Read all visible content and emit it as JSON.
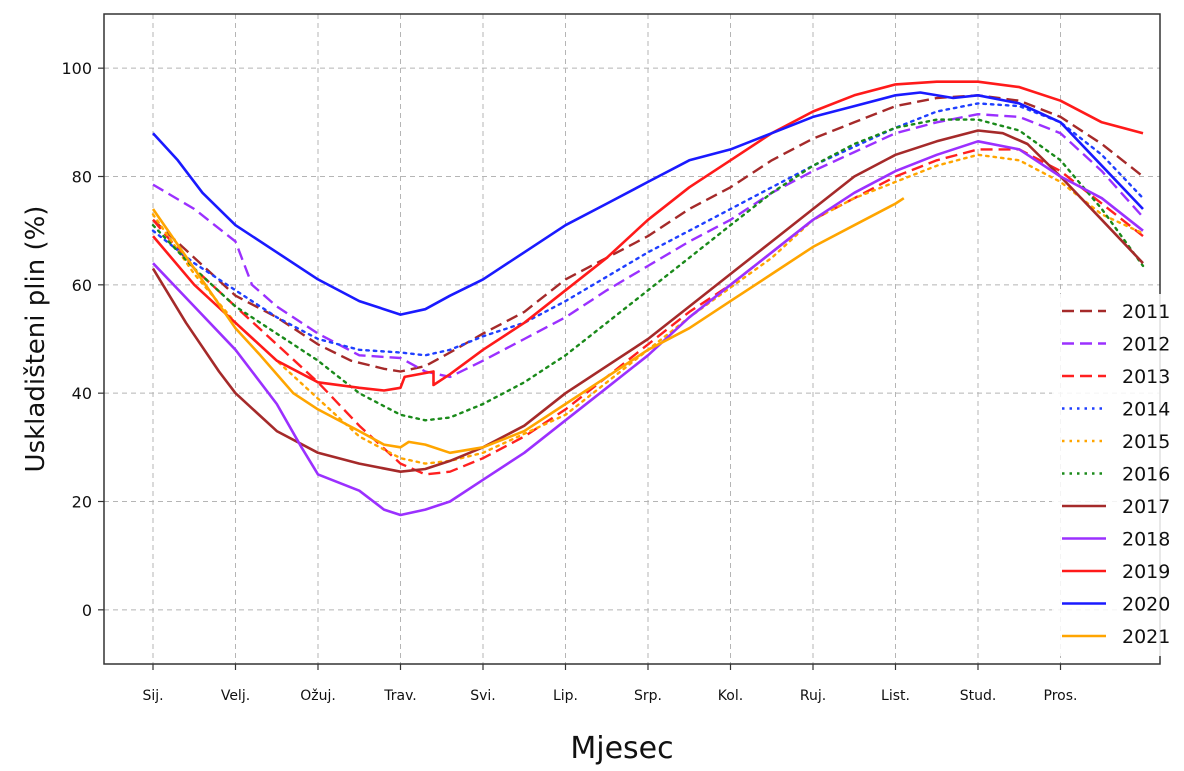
{
  "chart_data": {
    "type": "line",
    "xlabel": "Mjesec",
    "ylabel": "Uskladišteni plin (%)",
    "ylim": [
      -10,
      110
    ],
    "yticks": [
      0,
      20,
      40,
      60,
      80,
      100
    ],
    "months": [
      "Sij.",
      "Velj.",
      "Ožuj.",
      "Trav.",
      "Svi.",
      "Lip.",
      "Srp.",
      "Kol.",
      "Ruj.",
      "List.",
      "Stud.",
      "Pros."
    ],
    "x_unit": "month (1 = start of Sij.)",
    "grid": true,
    "legend_position": "right",
    "series": [
      {
        "name": "2011",
        "color": "#a52a2a",
        "dash": "dashed",
        "points": [
          [
            1,
            72
          ],
          [
            2,
            58
          ],
          [
            2.5,
            54
          ],
          [
            3,
            49
          ],
          [
            3.4,
            46
          ],
          [
            3.8,
            44.5
          ],
          [
            4,
            44
          ],
          [
            4.3,
            45
          ],
          [
            4.6,
            47.5
          ],
          [
            5,
            51
          ],
          [
            5.5,
            55
          ],
          [
            6,
            61
          ],
          [
            6.5,
            65
          ],
          [
            7,
            69
          ],
          [
            7.5,
            74
          ],
          [
            8,
            78
          ],
          [
            8.5,
            83
          ],
          [
            9,
            87
          ],
          [
            9.5,
            90
          ],
          [
            10,
            93
          ],
          [
            10.5,
            94.5
          ],
          [
            11,
            95
          ],
          [
            11.5,
            94
          ],
          [
            12,
            91
          ],
          [
            12.5,
            86
          ],
          [
            13,
            80
          ]
        ]
      },
      {
        "name": "2012",
        "color": "#9b30ff",
        "dash": "dashed",
        "points": [
          [
            1,
            78.5
          ],
          [
            1.5,
            74
          ],
          [
            2,
            68
          ],
          [
            2.2,
            60
          ],
          [
            2.5,
            56
          ],
          [
            3,
            51
          ],
          [
            3.5,
            47
          ],
          [
            4,
            46.5
          ],
          [
            4.3,
            44
          ],
          [
            4.6,
            43
          ],
          [
            5,
            46
          ],
          [
            5.5,
            50
          ],
          [
            6,
            54
          ],
          [
            6.5,
            59
          ],
          [
            7,
            63.5
          ],
          [
            7.5,
            68
          ],
          [
            8,
            72
          ],
          [
            8.5,
            77
          ],
          [
            9,
            81
          ],
          [
            9.5,
            84.5
          ],
          [
            10,
            88
          ],
          [
            10.5,
            90
          ],
          [
            11,
            91.5
          ],
          [
            11.5,
            91
          ],
          [
            12,
            88
          ],
          [
            12.5,
            81
          ],
          [
            13,
            72.5
          ]
        ]
      },
      {
        "name": "2013",
        "color": "#ff2020",
        "dash": "dashed",
        "points": [
          [
            1,
            72
          ],
          [
            1.5,
            63
          ],
          [
            2,
            56
          ],
          [
            2.5,
            49
          ],
          [
            3,
            42
          ],
          [
            3.5,
            34
          ],
          [
            4,
            27
          ],
          [
            4.3,
            25
          ],
          [
            4.6,
            25.5
          ],
          [
            5,
            28
          ],
          [
            5.5,
            32
          ],
          [
            6,
            37
          ],
          [
            6.5,
            43
          ],
          [
            7,
            49
          ],
          [
            7.5,
            55
          ],
          [
            8,
            60
          ],
          [
            8.5,
            66
          ],
          [
            9,
            72
          ],
          [
            9.5,
            76
          ],
          [
            10,
            80
          ],
          [
            10.5,
            83
          ],
          [
            11,
            85
          ],
          [
            11.5,
            85
          ],
          [
            12,
            81
          ],
          [
            12.5,
            75
          ],
          [
            13,
            69
          ]
        ]
      },
      {
        "name": "2014",
        "color": "#1f3fff",
        "dash": "dotted",
        "points": [
          [
            1,
            70
          ],
          [
            1.5,
            64
          ],
          [
            2,
            59
          ],
          [
            2.5,
            54
          ],
          [
            3,
            50
          ],
          [
            3.5,
            48
          ],
          [
            4,
            47.5
          ],
          [
            4.3,
            47
          ],
          [
            4.6,
            48
          ],
          [
            5,
            50.5
          ],
          [
            5.5,
            53
          ],
          [
            6,
            57
          ],
          [
            6.5,
            61.5
          ],
          [
            7,
            66
          ],
          [
            7.5,
            70
          ],
          [
            8,
            74
          ],
          [
            8.5,
            78
          ],
          [
            9,
            82
          ],
          [
            9.5,
            85.5
          ],
          [
            10,
            89
          ],
          [
            10.5,
            92
          ],
          [
            11,
            93.5
          ],
          [
            11.5,
            93
          ],
          [
            12,
            90
          ],
          [
            12.5,
            84
          ],
          [
            13,
            76
          ]
        ]
      },
      {
        "name": "2015",
        "color": "#ffa500",
        "dash": "dotted",
        "points": [
          [
            1,
            73
          ],
          [
            1.5,
            62
          ],
          [
            2,
            53
          ],
          [
            2.5,
            46
          ],
          [
            3,
            39
          ],
          [
            3.5,
            32
          ],
          [
            4,
            28
          ],
          [
            4.3,
            27
          ],
          [
            4.6,
            27.5
          ],
          [
            5,
            29
          ],
          [
            5.5,
            32.5
          ],
          [
            6,
            36
          ],
          [
            6.5,
            42
          ],
          [
            7,
            48
          ],
          [
            7.5,
            54
          ],
          [
            8,
            59.5
          ],
          [
            8.5,
            65
          ],
          [
            9,
            72
          ],
          [
            9.5,
            76
          ],
          [
            10,
            79
          ],
          [
            10.5,
            82
          ],
          [
            11,
            84
          ],
          [
            11.5,
            83
          ],
          [
            12,
            79
          ],
          [
            12.5,
            73
          ],
          [
            13,
            69.5
          ]
        ]
      },
      {
        "name": "2016",
        "color": "#1a8a1a",
        "dash": "dotted",
        "points": [
          [
            1,
            71
          ],
          [
            1.5,
            63
          ],
          [
            2,
            56
          ],
          [
            2.5,
            51
          ],
          [
            3,
            46
          ],
          [
            3.5,
            40
          ],
          [
            4,
            36
          ],
          [
            4.3,
            35
          ],
          [
            4.6,
            35.5
          ],
          [
            5,
            38
          ],
          [
            5.5,
            42
          ],
          [
            6,
            47
          ],
          [
            6.5,
            53
          ],
          [
            7,
            59
          ],
          [
            7.5,
            65
          ],
          [
            8,
            71
          ],
          [
            8.5,
            77
          ],
          [
            9,
            82
          ],
          [
            9.5,
            86
          ],
          [
            10,
            89
          ],
          [
            10.5,
            90.5
          ],
          [
            11,
            90.5
          ],
          [
            11.5,
            88.5
          ],
          [
            12,
            83
          ],
          [
            12.5,
            74
          ],
          [
            13,
            63.5
          ]
        ]
      },
      {
        "name": "2017",
        "color": "#a52a2a",
        "dash": "solid",
        "points": [
          [
            1,
            63
          ],
          [
            1.4,
            53
          ],
          [
            1.8,
            44
          ],
          [
            2,
            40
          ],
          [
            2.5,
            33
          ],
          [
            3,
            29
          ],
          [
            3.5,
            27
          ],
          [
            4,
            25.5
          ],
          [
            4.3,
            26
          ],
          [
            4.6,
            27.5
          ],
          [
            5,
            30
          ],
          [
            5.5,
            34
          ],
          [
            6,
            40
          ],
          [
            6.5,
            45
          ],
          [
            7,
            50
          ],
          [
            7.5,
            56
          ],
          [
            8,
            62
          ],
          [
            8.5,
            68
          ],
          [
            9,
            74
          ],
          [
            9.5,
            80
          ],
          [
            10,
            84
          ],
          [
            10.5,
            86.5
          ],
          [
            11,
            88.5
          ],
          [
            11.3,
            88
          ],
          [
            11.6,
            86
          ],
          [
            12,
            80
          ],
          [
            12.5,
            72
          ],
          [
            13,
            64
          ]
        ]
      },
      {
        "name": "2018",
        "color": "#9b30ff",
        "dash": "solid",
        "points": [
          [
            1,
            64
          ],
          [
            1.5,
            56
          ],
          [
            2,
            48
          ],
          [
            2.5,
            38
          ],
          [
            2.8,
            30
          ],
          [
            3,
            25
          ],
          [
            3.5,
            22
          ],
          [
            3.8,
            18.5
          ],
          [
            4,
            17.5
          ],
          [
            4.3,
            18.5
          ],
          [
            4.6,
            20
          ],
          [
            5,
            24
          ],
          [
            5.5,
            29
          ],
          [
            6,
            35
          ],
          [
            6.5,
            41
          ],
          [
            7,
            47
          ],
          [
            7.5,
            54
          ],
          [
            8,
            60
          ],
          [
            8.5,
            66
          ],
          [
            9,
            72
          ],
          [
            9.5,
            77
          ],
          [
            10,
            81
          ],
          [
            10.5,
            84
          ],
          [
            11,
            86.5
          ],
          [
            11.5,
            85
          ],
          [
            12,
            80
          ],
          [
            12.5,
            76
          ],
          [
            13,
            70
          ]
        ]
      },
      {
        "name": "2019",
        "color": "#ff1a1a",
        "dash": "solid",
        "points": [
          [
            1,
            69
          ],
          [
            1.5,
            60
          ],
          [
            2,
            53
          ],
          [
            2.5,
            46
          ],
          [
            3,
            42
          ],
          [
            3.5,
            41
          ],
          [
            3.8,
            40.5
          ],
          [
            4,
            41
          ],
          [
            4.05,
            43
          ],
          [
            4.4,
            44
          ],
          [
            4.4,
            41.5
          ],
          [
            4.6,
            43.5
          ],
          [
            5,
            48
          ],
          [
            5.5,
            53
          ],
          [
            6,
            59
          ],
          [
            6.5,
            65
          ],
          [
            7,
            72
          ],
          [
            7.5,
            78
          ],
          [
            8,
            83
          ],
          [
            8.5,
            88
          ],
          [
            9,
            92
          ],
          [
            9.5,
            95
          ],
          [
            10,
            97
          ],
          [
            10.5,
            97.5
          ],
          [
            11,
            97.5
          ],
          [
            11.5,
            96.5
          ],
          [
            12,
            94
          ],
          [
            12.5,
            90
          ],
          [
            13,
            88
          ]
        ]
      },
      {
        "name": "2020",
        "color": "#1a1aff",
        "dash": "solid",
        "points": [
          [
            1,
            88
          ],
          [
            1.3,
            83
          ],
          [
            1.6,
            77
          ],
          [
            2,
            71
          ],
          [
            2.5,
            66
          ],
          [
            3,
            61
          ],
          [
            3.5,
            57
          ],
          [
            4,
            54.5
          ],
          [
            4.3,
            55.5
          ],
          [
            4.6,
            58
          ],
          [
            5,
            61
          ],
          [
            5.5,
            66
          ],
          [
            6,
            71
          ],
          [
            6.5,
            75
          ],
          [
            7,
            79
          ],
          [
            7.5,
            83
          ],
          [
            8,
            85
          ],
          [
            8.5,
            88
          ],
          [
            9,
            91
          ],
          [
            9.5,
            93
          ],
          [
            10,
            95
          ],
          [
            10.3,
            95.5
          ],
          [
            10.7,
            94.5
          ],
          [
            11,
            95
          ],
          [
            11.5,
            93.5
          ],
          [
            12,
            90
          ],
          [
            12.5,
            82
          ],
          [
            13,
            74
          ]
        ]
      },
      {
        "name": "2021",
        "color": "#ffa500",
        "dash": "solid",
        "points": [
          [
            1,
            74
          ],
          [
            1.5,
            63
          ],
          [
            2,
            52
          ],
          [
            2.3,
            47
          ],
          [
            2.7,
            40
          ],
          [
            3,
            37
          ],
          [
            3.5,
            33
          ],
          [
            3.8,
            30.5
          ],
          [
            4,
            30
          ],
          [
            4.1,
            31
          ],
          [
            4.3,
            30.5
          ],
          [
            4.6,
            29
          ],
          [
            5,
            30
          ],
          [
            5.5,
            33
          ],
          [
            6,
            38
          ],
          [
            6.5,
            43
          ],
          [
            7,
            48
          ],
          [
            7.5,
            52
          ],
          [
            8,
            57
          ],
          [
            8.5,
            62
          ],
          [
            9,
            67
          ],
          [
            9.5,
            71
          ],
          [
            10,
            75
          ],
          [
            10.1,
            76
          ]
        ]
      }
    ]
  }
}
